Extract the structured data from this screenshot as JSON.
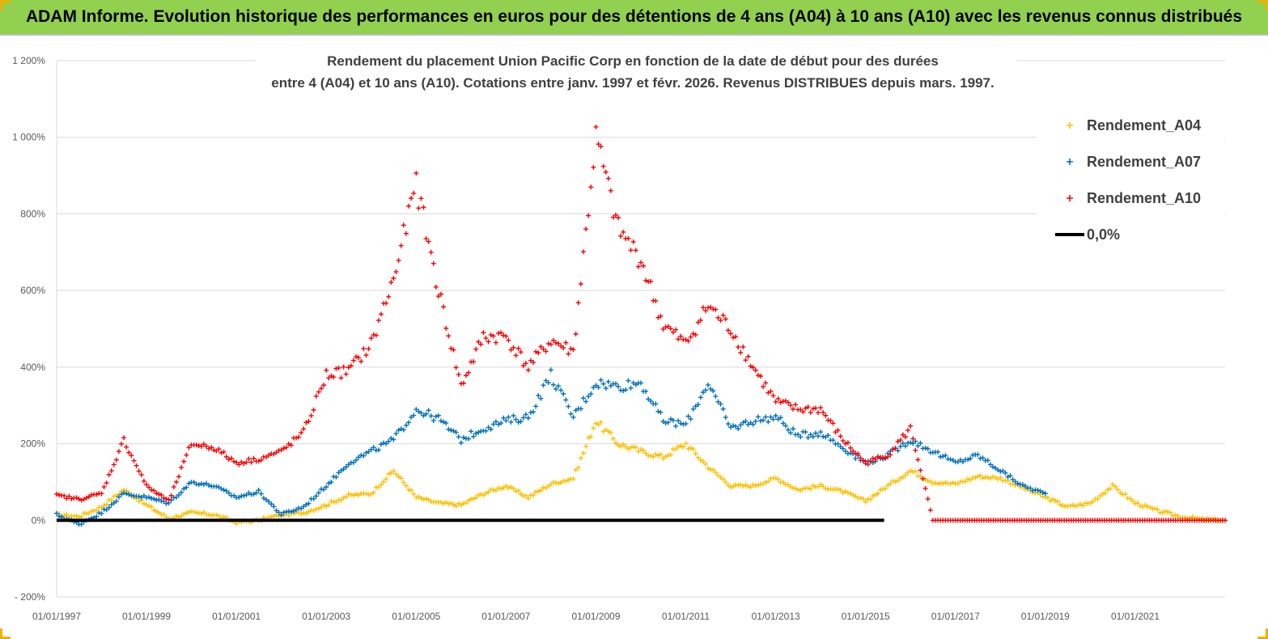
{
  "header": {
    "title": "ADAM Informe. Evolution historique des performances en euros pour des détentions de 4 ans (A04) à 10 ans (A10) avec les revenus connus distribués"
  },
  "colors": {
    "banner": "#92d050",
    "A04": "#ffc000",
    "A07": "#0070c0",
    "A10": "#ff0000",
    "zero": "#000000",
    "grid": "#d9d9d9"
  },
  "chart_data": {
    "type": "scatter",
    "title_lines": [
      "Rendement du placement Union Pacific Corp en fonction de la date de début pour des durées",
      "entre 4 (A04) et 10 ans (A10). Cotations entre janv. 1997 et févr. 2026. Revenus DISTRIBUES depuis mars. 1997."
    ],
    "xlabel": "",
    "ylabel": "",
    "x_range": [
      "1997-01-01",
      "2023-01-01"
    ],
    "ylim": [
      -200,
      1200
    ],
    "y_ticks": [
      -200,
      0,
      200,
      400,
      600,
      800,
      1000,
      1200
    ],
    "y_tick_labels": [
      "- 200%",
      "0%",
      "200%",
      "400%",
      "600%",
      "800%",
      "1 000%",
      "1 200%"
    ],
    "x_tick_labels": [
      "01/01/1997",
      "01/01/1999",
      "01/01/2001",
      "01/01/2003",
      "01/01/2005",
      "01/01/2007",
      "01/01/2009",
      "01/01/2011",
      "01/01/2013",
      "01/01/2015",
      "01/01/2017",
      "01/01/2019",
      "01/01/2021"
    ],
    "grid": "horizontal",
    "legend_position": "top-right",
    "series": [
      {
        "name": "Rendement_A04",
        "color": "#ffc000",
        "marker": "+",
        "points": [
          [
            "1997-01-01",
            15
          ],
          [
            "1997-07-01",
            10
          ],
          [
            "1998-01-01",
            35
          ],
          [
            "1998-07-01",
            80
          ],
          [
            "1999-01-01",
            40
          ],
          [
            "1999-07-01",
            5
          ],
          [
            "2000-01-01",
            20
          ],
          [
            "2000-07-01",
            15
          ],
          [
            "2001-01-01",
            -5
          ],
          [
            "2001-07-01",
            0
          ],
          [
            "2002-01-01",
            15
          ],
          [
            "2002-07-01",
            20
          ],
          [
            "2003-01-01",
            40
          ],
          [
            "2003-07-01",
            65
          ],
          [
            "2004-01-01",
            70
          ],
          [
            "2004-07-01",
            130
          ],
          [
            "2005-01-01",
            60
          ],
          [
            "2005-07-01",
            45
          ],
          [
            "2006-01-01",
            40
          ],
          [
            "2006-07-01",
            70
          ],
          [
            "2007-01-01",
            90
          ],
          [
            "2007-07-01",
            60
          ],
          [
            "2008-01-01",
            95
          ],
          [
            "2008-07-01",
            110
          ],
          [
            "2009-01-01",
            260
          ],
          [
            "2009-07-01",
            200
          ],
          [
            "2010-01-01",
            180
          ],
          [
            "2010-07-01",
            165
          ],
          [
            "2011-01-01",
            200
          ],
          [
            "2011-07-01",
            140
          ],
          [
            "2012-01-01",
            90
          ],
          [
            "2012-07-01",
            90
          ],
          [
            "2013-01-01",
            110
          ],
          [
            "2013-07-01",
            80
          ],
          [
            "2014-01-01",
            90
          ],
          [
            "2014-07-01",
            75
          ],
          [
            "2015-01-01",
            50
          ],
          [
            "2015-07-01",
            90
          ],
          [
            "2016-01-01",
            130
          ],
          [
            "2016-07-01",
            100
          ],
          [
            "2017-01-01",
            95
          ],
          [
            "2017-07-01",
            115
          ],
          [
            "2018-01-01",
            110
          ],
          [
            "2018-07-01",
            85
          ],
          [
            "2019-01-01",
            60
          ],
          [
            "2019-07-01",
            35
          ],
          [
            "2020-01-01",
            45
          ],
          [
            "2020-07-01",
            90
          ],
          [
            "2021-01-01",
            45
          ],
          [
            "2021-07-01",
            25
          ],
          [
            "2022-01-01",
            10
          ],
          [
            "2022-07-01",
            2
          ],
          [
            "2023-01-01",
            0
          ]
        ]
      },
      {
        "name": "Rendement_A07",
        "color": "#0070c0",
        "marker": "+",
        "points": [
          [
            "1997-01-01",
            15
          ],
          [
            "1997-07-01",
            -10
          ],
          [
            "1998-01-01",
            20
          ],
          [
            "1998-07-01",
            70
          ],
          [
            "1999-01-01",
            60
          ],
          [
            "1999-07-01",
            45
          ],
          [
            "2000-01-01",
            100
          ],
          [
            "2000-07-01",
            90
          ],
          [
            "2001-01-01",
            60
          ],
          [
            "2001-07-01",
            75
          ],
          [
            "2002-01-01",
            15
          ],
          [
            "2002-07-01",
            35
          ],
          [
            "2003-01-01",
            90
          ],
          [
            "2003-07-01",
            150
          ],
          [
            "2004-01-01",
            180
          ],
          [
            "2004-07-01",
            210
          ],
          [
            "2005-01-01",
            290
          ],
          [
            "2005-07-01",
            265
          ],
          [
            "2006-01-01",
            210
          ],
          [
            "2006-07-01",
            240
          ],
          [
            "2007-01-01",
            260
          ],
          [
            "2007-07-01",
            270
          ],
          [
            "2008-01-01",
            380
          ],
          [
            "2008-07-01",
            270
          ],
          [
            "2009-01-01",
            360
          ],
          [
            "2009-07-01",
            350
          ],
          [
            "2010-01-01",
            360
          ],
          [
            "2010-07-01",
            260
          ],
          [
            "2011-01-01",
            250
          ],
          [
            "2011-07-01",
            360
          ],
          [
            "2012-01-01",
            240
          ],
          [
            "2012-07-01",
            260
          ],
          [
            "2013-01-01",
            270
          ],
          [
            "2013-07-01",
            220
          ],
          [
            "2014-01-01",
            230
          ],
          [
            "2014-07-01",
            190
          ],
          [
            "2015-01-01",
            150
          ],
          [
            "2015-07-01",
            170
          ],
          [
            "2016-01-01",
            210
          ],
          [
            "2016-07-01",
            180
          ],
          [
            "2017-01-01",
            150
          ],
          [
            "2017-07-01",
            170
          ],
          [
            "2018-01-01",
            130
          ],
          [
            "2018-07-01",
            90
          ],
          [
            "2019-01-01",
            70
          ]
        ]
      },
      {
        "name": "Rendement_A10",
        "color": "#ff0000",
        "marker": "+",
        "points": [
          [
            "1997-01-01",
            65
          ],
          [
            "1997-07-01",
            55
          ],
          [
            "1998-01-01",
            70
          ],
          [
            "1998-07-01",
            210
          ],
          [
            "1999-01-01",
            90
          ],
          [
            "1999-07-01",
            50
          ],
          [
            "2000-01-01",
            200
          ],
          [
            "2000-07-01",
            190
          ],
          [
            "2001-01-01",
            150
          ],
          [
            "2001-07-01",
            160
          ],
          [
            "2002-01-01",
            180
          ],
          [
            "2002-07-01",
            230
          ],
          [
            "2003-01-01",
            380
          ],
          [
            "2003-07-01",
            390
          ],
          [
            "2004-01-01",
            460
          ],
          [
            "2004-07-01",
            630
          ],
          [
            "2005-01-01",
            880
          ],
          [
            "2005-07-01",
            600
          ],
          [
            "2006-01-01",
            350
          ],
          [
            "2006-07-01",
            480
          ],
          [
            "2007-01-01",
            480
          ],
          [
            "2007-07-01",
            400
          ],
          [
            "2008-01-01",
            470
          ],
          [
            "2008-07-01",
            440
          ],
          [
            "2009-01-01",
            1000
          ],
          [
            "2009-07-01",
            760
          ],
          [
            "2010-01-01",
            680
          ],
          [
            "2010-07-01",
            510
          ],
          [
            "2011-01-01",
            460
          ],
          [
            "2011-07-01",
            560
          ],
          [
            "2012-01-01",
            500
          ],
          [
            "2012-07-01",
            400
          ],
          [
            "2013-01-01",
            310
          ],
          [
            "2013-07-01",
            290
          ],
          [
            "2014-01-01",
            290
          ],
          [
            "2014-07-01",
            210
          ],
          [
            "2015-01-01",
            150
          ],
          [
            "2015-07-01",
            170
          ],
          [
            "2016-01-01",
            240
          ],
          [
            "2016-07-01",
            0
          ],
          [
            "2017-01-01",
            0
          ],
          [
            "2018-01-01",
            0
          ],
          [
            "2019-01-01",
            0
          ],
          [
            "2020-01-01",
            0
          ],
          [
            "2021-01-01",
            0
          ],
          [
            "2022-01-01",
            0
          ],
          [
            "2023-01-01",
            0
          ]
        ]
      },
      {
        "name": "0,0%",
        "color": "#000000",
        "type": "line",
        "points": [
          [
            "1997-01-01",
            0
          ],
          [
            "2015-06-01",
            0
          ]
        ]
      }
    ]
  }
}
